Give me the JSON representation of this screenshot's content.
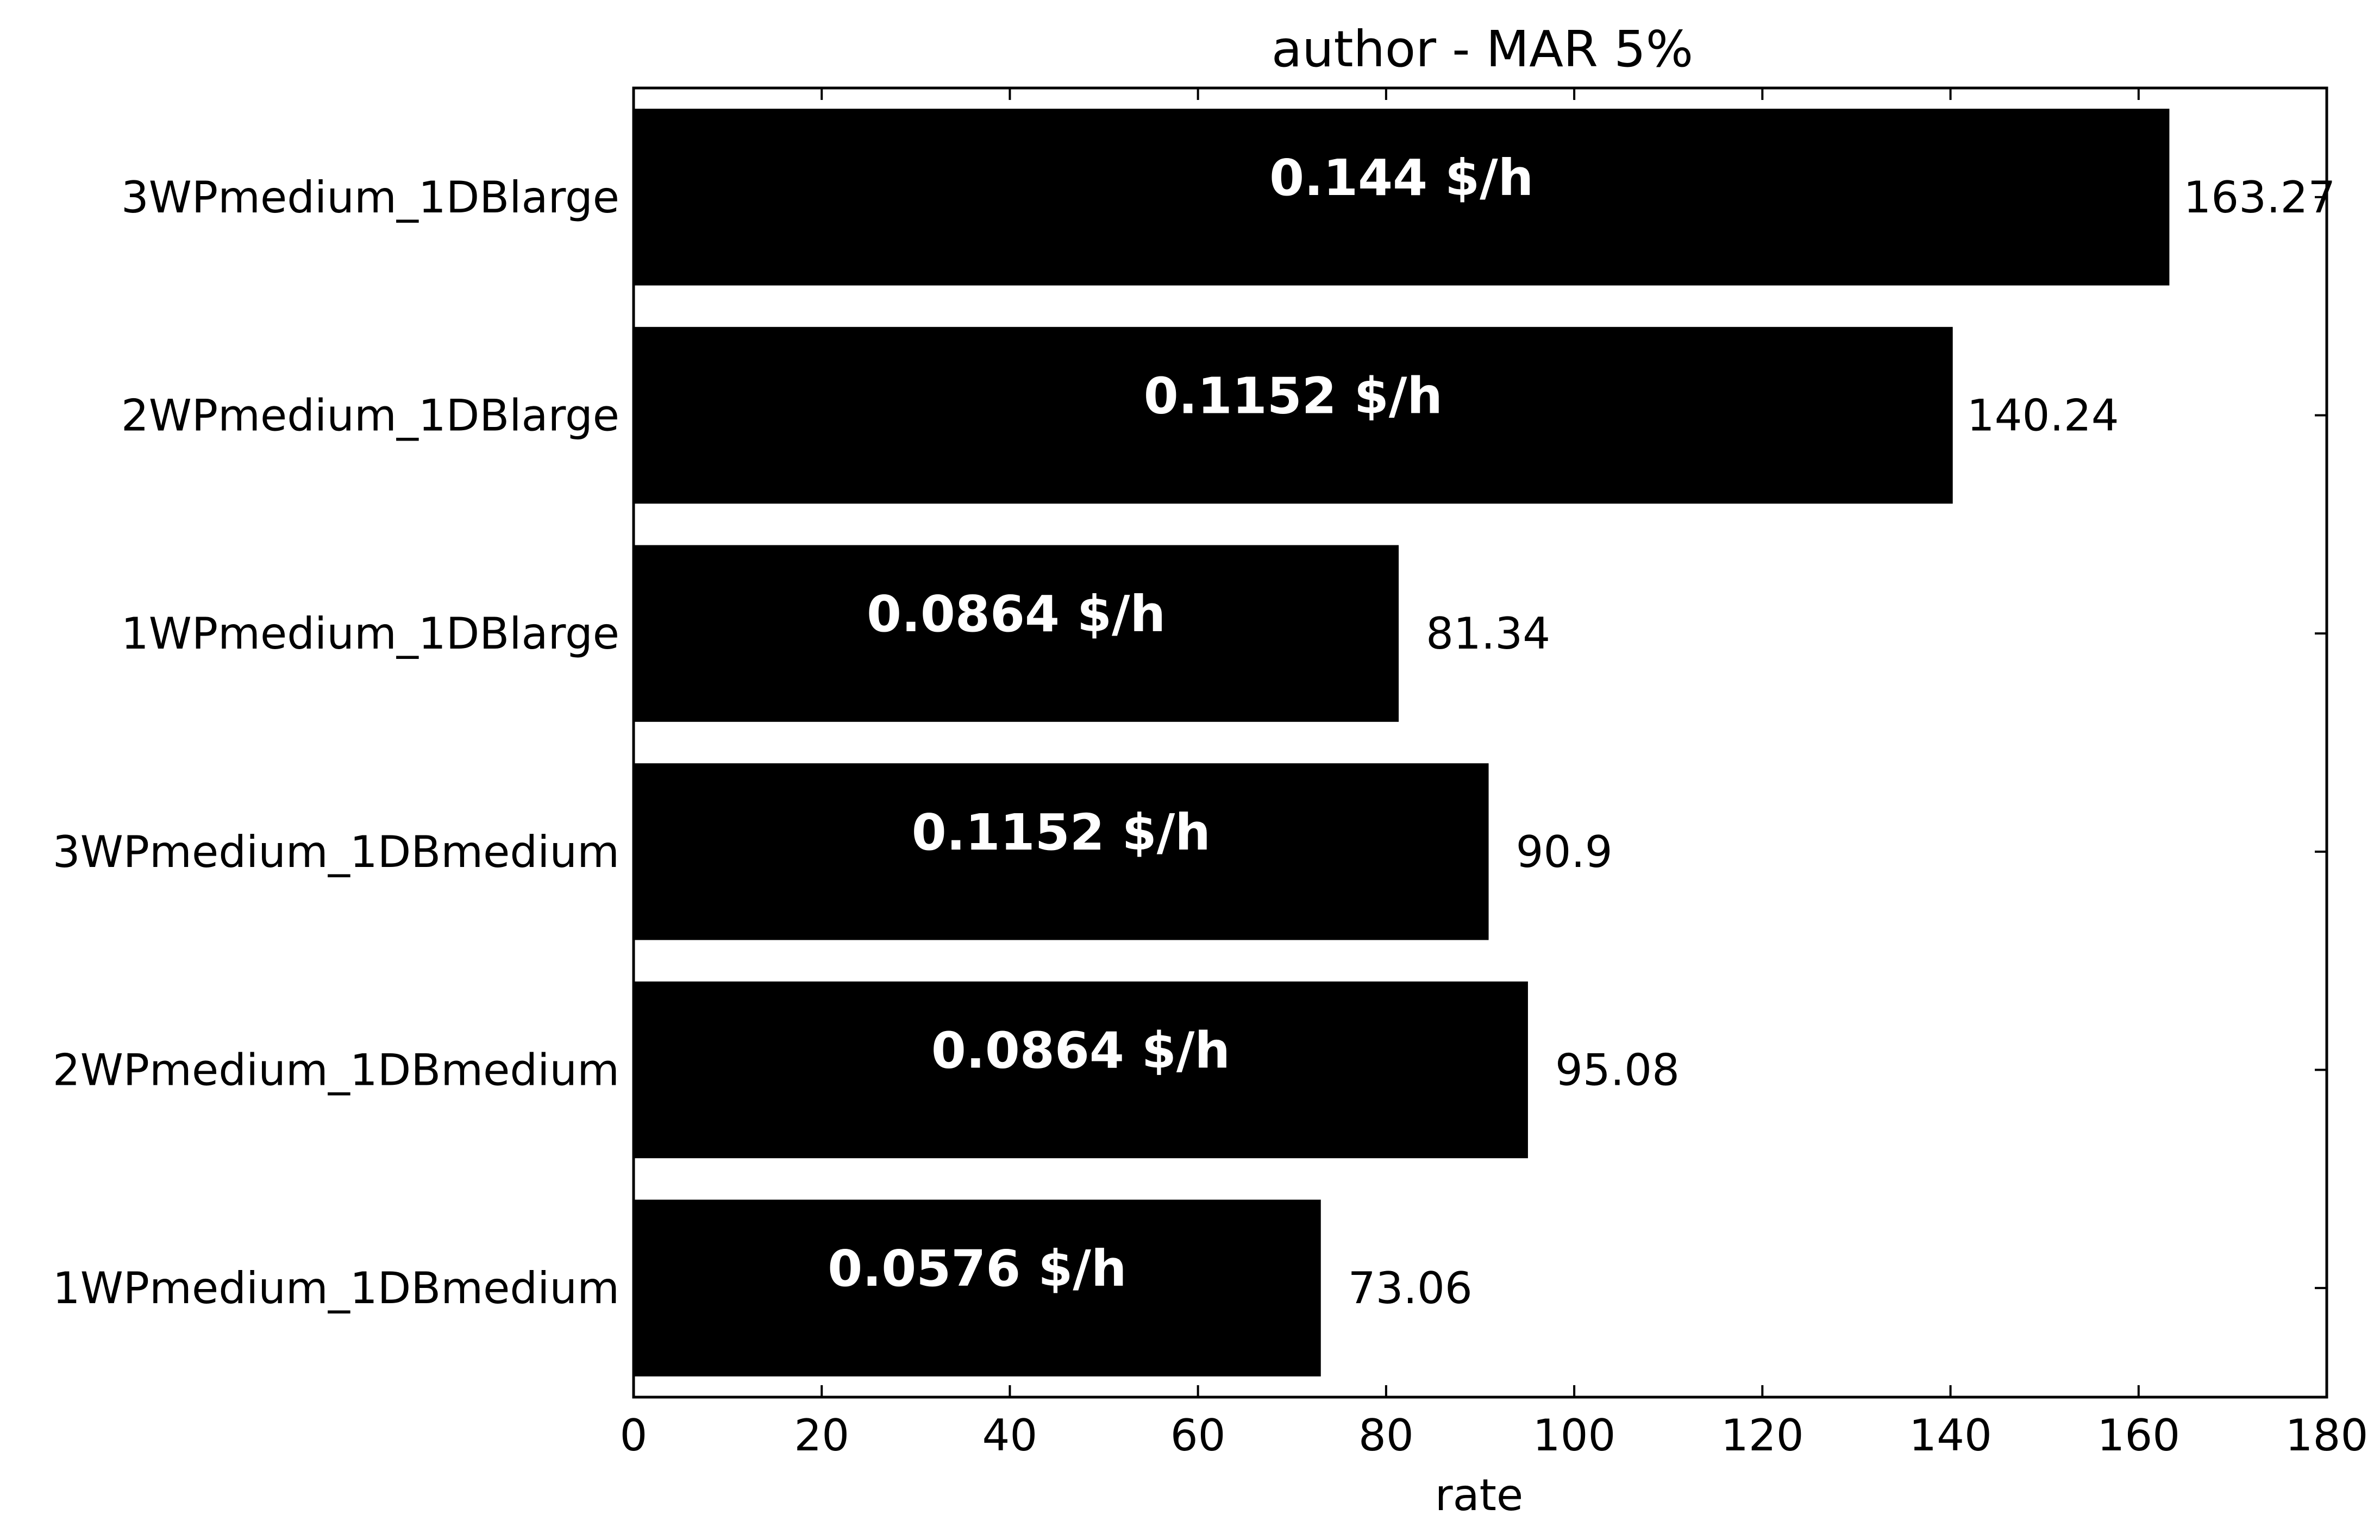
{
  "chart_data": {
    "type": "bar",
    "orientation": "horizontal",
    "title": "author  - MAR 5%",
    "xlabel": "rate",
    "ylabel": "",
    "xlim": [
      0,
      180
    ],
    "xticks": [
      0,
      20,
      40,
      60,
      80,
      100,
      120,
      140,
      160,
      180
    ],
    "grid": false,
    "colors": {
      "bar": "#000000",
      "inbar_text": "#ffffff"
    },
    "bars": [
      {
        "category": "3WPmedium_1DBlarge",
        "value": 163.27,
        "value_label": "163.27",
        "cost_label": "0.144 $/h"
      },
      {
        "category": "2WPmedium_1DBlarge",
        "value": 140.24,
        "value_label": "140.24",
        "cost_label": "0.1152 $/h"
      },
      {
        "category": "1WPmedium_1DBlarge",
        "value": 81.34,
        "value_label": "81.34",
        "cost_label": "0.0864 $/h"
      },
      {
        "category": "3WPmedium_1DBmedium",
        "value": 90.9,
        "value_label": "90.9",
        "cost_label": "0.1152 $/h"
      },
      {
        "category": "2WPmedium_1DBmedium",
        "value": 95.08,
        "value_label": "95.08",
        "cost_label": "0.0864 $/h"
      },
      {
        "category": "1WPmedium_1DBmedium",
        "value": 73.06,
        "value_label": "73.06",
        "cost_label": "0.0576 $/h"
      }
    ]
  }
}
